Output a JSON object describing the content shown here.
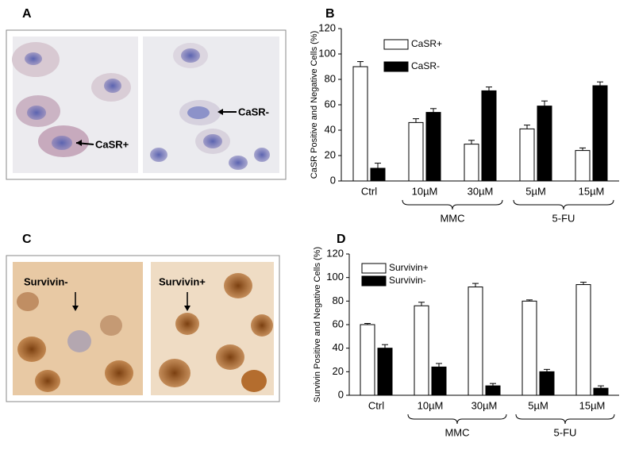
{
  "panels": {
    "A": {
      "label": "A",
      "annotations": [
        "CaSR+",
        "CaSR-"
      ]
    },
    "C": {
      "label": "C",
      "annotations": [
        "Survivin-",
        "Survivin+"
      ]
    }
  },
  "chart_data": [
    {
      "type": "bar",
      "label": "B",
      "y_label": "CaSR Positive and Negative Cells (%)",
      "categories": [
        "Ctrl",
        "10µM",
        "30µM",
        "5µM",
        "15µM"
      ],
      "group_labels": [
        "MMC",
        "5-FU"
      ],
      "series": [
        {
          "name": "CaSR+",
          "color": "#ffffff",
          "values": [
            90,
            46,
            29,
            41,
            24
          ],
          "errors": [
            4,
            3,
            3,
            3,
            2
          ]
        },
        {
          "name": "CaSR-",
          "color": "#000000",
          "values": [
            10,
            54,
            71,
            59,
            75
          ],
          "errors": [
            4,
            3,
            3,
            4,
            3
          ]
        }
      ],
      "ylim": [
        0,
        120
      ],
      "yticks": [
        0,
        20,
        40,
        60,
        80,
        100,
        120
      ]
    },
    {
      "type": "bar",
      "label": "D",
      "y_label": "Survivin Positive and Negative Cells (%)",
      "categories": [
        "Ctrl",
        "10µM",
        "30µM",
        "5µM",
        "15µM"
      ],
      "group_labels": [
        "MMC",
        "5-FU"
      ],
      "series": [
        {
          "name": "Survivin+",
          "color": "#ffffff",
          "values": [
            60,
            76,
            92,
            80,
            94
          ],
          "errors": [
            1,
            3,
            3,
            1,
            2
          ]
        },
        {
          "name": "Survivin-",
          "color": "#000000",
          "values": [
            40,
            24,
            8,
            20,
            6
          ],
          "errors": [
            3,
            3,
            2,
            2,
            2
          ]
        }
      ],
      "ylim": [
        0,
        120
      ],
      "yticks": [
        0,
        20,
        40,
        60,
        80,
        100,
        120
      ]
    }
  ]
}
